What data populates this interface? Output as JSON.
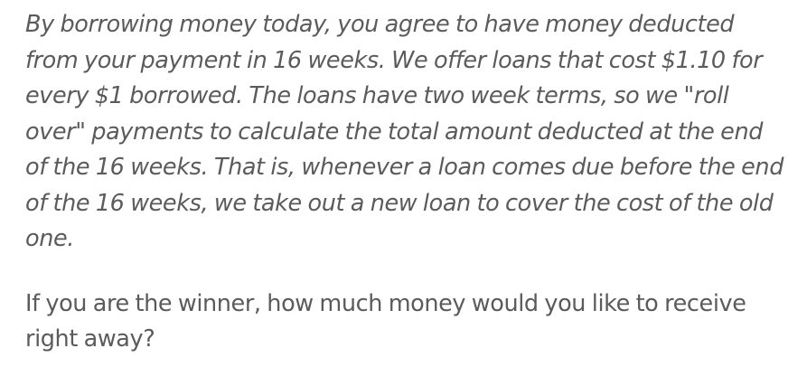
{
  "survey": {
    "intro_text": "By borrowing money today, you agree to have money deducted from your payment in 16 weeks. We offer loans that cost $1.10 for every $1 borrowed. The loans have two week terms, so we \"roll over\" payments to calculate the total amount deducted at the end of the 16 weeks. That is, whenever a loan comes due before the end of the 16 weeks, we take out a new loan to cover the cost of the old one.",
    "question_text": "If you are the winner, how much money would you like to receive right away?"
  }
}
